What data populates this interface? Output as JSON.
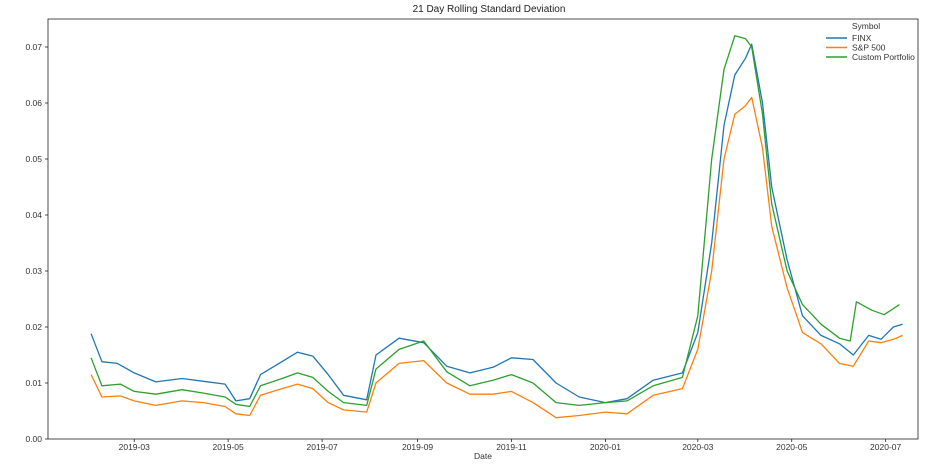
{
  "chart_data": {
    "type": "line",
    "title": "21 Day Rolling Standard Deviation",
    "xlabel": "Date",
    "ylabel": "",
    "x_range": [
      "2019-01-04",
      "2020-07-22"
    ],
    "ylim": [
      0,
      0.075
    ],
    "x_ticks": [
      "2019-03",
      "2019-05",
      "2019-07",
      "2019-09",
      "2019-11",
      "2020-01",
      "2020-03",
      "2020-05",
      "2020-07"
    ],
    "y_ticks": [
      0.0,
      0.01,
      0.02,
      0.03,
      0.04,
      0.05,
      0.06,
      0.07
    ],
    "y_tick_labels": [
      "0.00",
      "0.01",
      "0.02",
      "0.03",
      "0.04",
      "0.05",
      "0.06",
      "0.07"
    ],
    "grid": false,
    "legend": {
      "title": "Symbol",
      "position": "top-right"
    },
    "series": [
      {
        "name": "FINX",
        "color": "#1f77b4",
        "points": [
          [
            "2019-02-01",
            0.0188
          ],
          [
            "2019-02-08",
            0.0138
          ],
          [
            "2019-02-18",
            0.0135
          ],
          [
            "2019-03-01",
            0.0118
          ],
          [
            "2019-03-15",
            0.0102
          ],
          [
            "2019-04-01",
            0.0108
          ],
          [
            "2019-04-15",
            0.0103
          ],
          [
            "2019-04-29",
            0.0098
          ],
          [
            "2019-05-06",
            0.0068
          ],
          [
            "2019-05-15",
            0.0072
          ],
          [
            "2019-05-22",
            0.0115
          ],
          [
            "2019-06-03",
            0.0135
          ],
          [
            "2019-06-15",
            0.0155
          ],
          [
            "2019-06-25",
            0.0148
          ],
          [
            "2019-07-05",
            0.0115
          ],
          [
            "2019-07-15",
            0.0078
          ],
          [
            "2019-07-30",
            0.007
          ],
          [
            "2019-08-05",
            0.015
          ],
          [
            "2019-08-20",
            0.018
          ],
          [
            "2019-09-05",
            0.0172
          ],
          [
            "2019-09-20",
            0.013
          ],
          [
            "2019-10-05",
            0.0118
          ],
          [
            "2019-10-20",
            0.0128
          ],
          [
            "2019-11-01",
            0.0145
          ],
          [
            "2019-11-15",
            0.0142
          ],
          [
            "2019-11-30",
            0.01
          ],
          [
            "2019-12-15",
            0.0075
          ],
          [
            "2020-01-01",
            0.0065
          ],
          [
            "2020-01-15",
            0.0072
          ],
          [
            "2020-02-01",
            0.0105
          ],
          [
            "2020-02-20",
            0.0118
          ],
          [
            "2020-03-01",
            0.019
          ],
          [
            "2020-03-10",
            0.035
          ],
          [
            "2020-03-18",
            0.056
          ],
          [
            "2020-03-25",
            0.065
          ],
          [
            "2020-04-01",
            0.068
          ],
          [
            "2020-04-05",
            0.0705
          ],
          [
            "2020-04-12",
            0.06
          ],
          [
            "2020-04-18",
            0.045
          ],
          [
            "2020-04-28",
            0.032
          ],
          [
            "2020-05-08",
            0.022
          ],
          [
            "2020-05-20",
            0.0185
          ],
          [
            "2020-06-01",
            0.017
          ],
          [
            "2020-06-10",
            0.015
          ],
          [
            "2020-06-20",
            0.0185
          ],
          [
            "2020-06-28",
            0.0178
          ],
          [
            "2020-07-06",
            0.02
          ],
          [
            "2020-07-12",
            0.0205
          ]
        ]
      },
      {
        "name": "S&P 500",
        "color": "#ff7f0e",
        "points": [
          [
            "2019-02-01",
            0.0115
          ],
          [
            "2019-02-08",
            0.0075
          ],
          [
            "2019-02-20",
            0.0077
          ],
          [
            "2019-03-01",
            0.0068
          ],
          [
            "2019-03-15",
            0.006
          ],
          [
            "2019-04-01",
            0.0068
          ],
          [
            "2019-04-15",
            0.0065
          ],
          [
            "2019-04-29",
            0.0058
          ],
          [
            "2019-05-06",
            0.0045
          ],
          [
            "2019-05-15",
            0.0042
          ],
          [
            "2019-05-22",
            0.0078
          ],
          [
            "2019-06-05",
            0.009
          ],
          [
            "2019-06-15",
            0.0098
          ],
          [
            "2019-06-25",
            0.009
          ],
          [
            "2019-07-05",
            0.0065
          ],
          [
            "2019-07-15",
            0.0052
          ],
          [
            "2019-07-30",
            0.0048
          ],
          [
            "2019-08-05",
            0.01
          ],
          [
            "2019-08-20",
            0.0135
          ],
          [
            "2019-09-05",
            0.014
          ],
          [
            "2019-09-20",
            0.01
          ],
          [
            "2019-10-05",
            0.008
          ],
          [
            "2019-10-20",
            0.008
          ],
          [
            "2019-11-01",
            0.0085
          ],
          [
            "2019-11-15",
            0.0065
          ],
          [
            "2019-11-30",
            0.0038
          ],
          [
            "2019-12-15",
            0.0042
          ],
          [
            "2020-01-01",
            0.0048
          ],
          [
            "2020-01-15",
            0.0045
          ],
          [
            "2020-02-01",
            0.0078
          ],
          [
            "2020-02-20",
            0.009
          ],
          [
            "2020-03-01",
            0.016
          ],
          [
            "2020-03-10",
            0.03
          ],
          [
            "2020-03-18",
            0.05
          ],
          [
            "2020-03-25",
            0.058
          ],
          [
            "2020-04-01",
            0.0595
          ],
          [
            "2020-04-05",
            0.061
          ],
          [
            "2020-04-12",
            0.052
          ],
          [
            "2020-04-18",
            0.038
          ],
          [
            "2020-04-28",
            0.027
          ],
          [
            "2020-05-08",
            0.019
          ],
          [
            "2020-05-20",
            0.017
          ],
          [
            "2020-06-01",
            0.0135
          ],
          [
            "2020-06-10",
            0.013
          ],
          [
            "2020-06-20",
            0.0175
          ],
          [
            "2020-06-28",
            0.0172
          ],
          [
            "2020-07-06",
            0.0178
          ],
          [
            "2020-07-12",
            0.0185
          ]
        ]
      },
      {
        "name": "Custom Portfolio",
        "color": "#2ca02c",
        "points": [
          [
            "2019-02-01",
            0.0145
          ],
          [
            "2019-02-08",
            0.0095
          ],
          [
            "2019-02-20",
            0.0098
          ],
          [
            "2019-03-01",
            0.0085
          ],
          [
            "2019-03-15",
            0.008
          ],
          [
            "2019-04-01",
            0.0088
          ],
          [
            "2019-04-15",
            0.0082
          ],
          [
            "2019-04-29",
            0.0075
          ],
          [
            "2019-05-06",
            0.0062
          ],
          [
            "2019-05-15",
            0.0058
          ],
          [
            "2019-05-22",
            0.0095
          ],
          [
            "2019-06-05",
            0.0108
          ],
          [
            "2019-06-15",
            0.0118
          ],
          [
            "2019-06-25",
            0.011
          ],
          [
            "2019-07-05",
            0.0085
          ],
          [
            "2019-07-15",
            0.0065
          ],
          [
            "2019-07-30",
            0.006
          ],
          [
            "2019-08-05",
            0.0125
          ],
          [
            "2019-08-20",
            0.016
          ],
          [
            "2019-09-05",
            0.0175
          ],
          [
            "2019-09-20",
            0.012
          ],
          [
            "2019-10-05",
            0.0095
          ],
          [
            "2019-10-20",
            0.0105
          ],
          [
            "2019-11-01",
            0.0115
          ],
          [
            "2019-11-15",
            0.01
          ],
          [
            "2019-11-30",
            0.0065
          ],
          [
            "2019-12-15",
            0.006
          ],
          [
            "2020-01-01",
            0.0065
          ],
          [
            "2020-01-15",
            0.0068
          ],
          [
            "2020-02-01",
            0.0095
          ],
          [
            "2020-02-20",
            0.011
          ],
          [
            "2020-03-01",
            0.022
          ],
          [
            "2020-03-10",
            0.05
          ],
          [
            "2020-03-18",
            0.066
          ],
          [
            "2020-03-25",
            0.072
          ],
          [
            "2020-04-01",
            0.0715
          ],
          [
            "2020-04-05",
            0.07
          ],
          [
            "2020-04-12",
            0.058
          ],
          [
            "2020-04-18",
            0.042
          ],
          [
            "2020-04-28",
            0.03
          ],
          [
            "2020-05-08",
            0.024
          ],
          [
            "2020-05-20",
            0.0205
          ],
          [
            "2020-06-01",
            0.018
          ],
          [
            "2020-06-08",
            0.0175
          ],
          [
            "2020-06-12",
            0.0245
          ],
          [
            "2020-06-22",
            0.023
          ],
          [
            "2020-06-30",
            0.0222
          ],
          [
            "2020-07-10",
            0.024
          ]
        ]
      }
    ]
  }
}
